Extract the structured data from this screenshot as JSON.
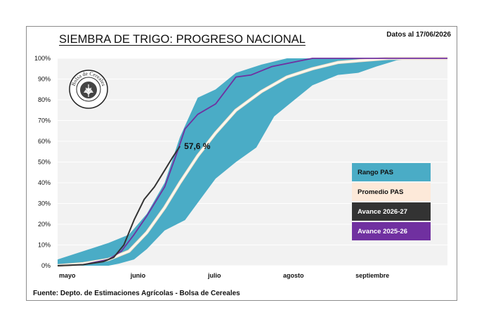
{
  "header": {
    "title": "SIEMBRA DE TRIGO: PROGRESO NACIONAL",
    "date": "Datos al 17/06/2026"
  },
  "footer": {
    "source": "Fuente: Depto. de Estimaciones Agrícolas - Bolsa de Cereales"
  },
  "logo": {
    "text": "Bolsa de Cereales",
    "icon": "wheat-seal-icon"
  },
  "colors": {
    "range": "#4aacc6",
    "average_fill": "#fde9d9",
    "average_line": "#fdf7ec",
    "current": "#333333",
    "previous": "#7030a0",
    "plot_bg": "#f2f2f2",
    "grid": "#ffffff"
  },
  "chart_data": {
    "type": "line",
    "x_axis": {
      "unit": "days since May 1",
      "range": [
        0,
        153
      ],
      "tick_labels": [
        {
          "label": "mayo",
          "x": 0
        },
        {
          "label": "junio",
          "x": 31
        },
        {
          "label": "julio",
          "x": 61
        },
        {
          "label": "agosto",
          "x": 92
        },
        {
          "label": "septiembre",
          "x": 123
        }
      ]
    },
    "y_axis": {
      "range": [
        0,
        100
      ],
      "ticks": [
        "0%",
        "10%",
        "20%",
        "30%",
        "40%",
        "50%",
        "60%",
        "70%",
        "80%",
        "90%",
        "100%"
      ]
    },
    "grid": true,
    "legend_position": "right",
    "legend": [
      {
        "key": "range",
        "label": "Rango PAS"
      },
      {
        "key": "average",
        "label": "Promedio PAS"
      },
      {
        "key": "current",
        "label": "Avance 2026-27"
      },
      {
        "key": "previous",
        "label": "Avance 2025-26"
      }
    ],
    "range_upper": [
      [
        0,
        3
      ],
      [
        10,
        7
      ],
      [
        20,
        11
      ],
      [
        28,
        15
      ],
      [
        35,
        25
      ],
      [
        42,
        40
      ],
      [
        48,
        62
      ],
      [
        55,
        81
      ],
      [
        62,
        85
      ],
      [
        70,
        93
      ],
      [
        80,
        97
      ],
      [
        90,
        100
      ],
      [
        153,
        100
      ]
    ],
    "range_lower": [
      [
        0,
        0
      ],
      [
        20,
        0
      ],
      [
        24,
        1
      ],
      [
        30,
        3
      ],
      [
        35,
        8
      ],
      [
        42,
        17
      ],
      [
        50,
        22
      ],
      [
        56,
        32
      ],
      [
        62,
        42
      ],
      [
        70,
        50
      ],
      [
        78,
        57
      ],
      [
        85,
        72
      ],
      [
        92,
        79
      ],
      [
        100,
        87
      ],
      [
        110,
        92
      ],
      [
        118,
        93
      ],
      [
        125,
        96
      ],
      [
        133,
        99
      ],
      [
        140,
        100
      ],
      [
        153,
        100
      ]
    ],
    "average": [
      [
        0,
        0
      ],
      [
        10,
        1
      ],
      [
        20,
        3
      ],
      [
        28,
        7
      ],
      [
        35,
        16
      ],
      [
        42,
        28
      ],
      [
        48,
        40
      ],
      [
        55,
        53
      ],
      [
        62,
        64
      ],
      [
        70,
        75
      ],
      [
        80,
        84
      ],
      [
        90,
        91
      ],
      [
        100,
        95
      ],
      [
        110,
        98
      ],
      [
        120,
        99
      ],
      [
        130,
        100
      ],
      [
        153,
        100
      ]
    ],
    "series_current": {
      "name": "Avance 2026-27",
      "points": [
        [
          0,
          0
        ],
        [
          10,
          0.5
        ],
        [
          18,
          2
        ],
        [
          22,
          4
        ],
        [
          26,
          10
        ],
        [
          30,
          22
        ],
        [
          34,
          32
        ],
        [
          38,
          38
        ],
        [
          42,
          46
        ],
        [
          45,
          52
        ],
        [
          48,
          57.6
        ]
      ]
    },
    "series_previous": {
      "name": "Avance 2025-26",
      "points": [
        [
          0,
          0
        ],
        [
          10,
          0.5
        ],
        [
          20,
          3
        ],
        [
          25,
          7
        ],
        [
          30,
          15
        ],
        [
          35,
          24
        ],
        [
          42,
          38
        ],
        [
          47,
          55
        ],
        [
          50,
          66
        ],
        [
          55,
          73
        ],
        [
          62,
          78
        ],
        [
          70,
          91
        ],
        [
          76,
          92
        ],
        [
          84,
          96
        ],
        [
          92,
          98
        ],
        [
          100,
          100
        ],
        [
          153,
          100
        ]
      ]
    },
    "annotation": {
      "text": "57,6 %",
      "x": 48,
      "y": 57.6
    }
  }
}
